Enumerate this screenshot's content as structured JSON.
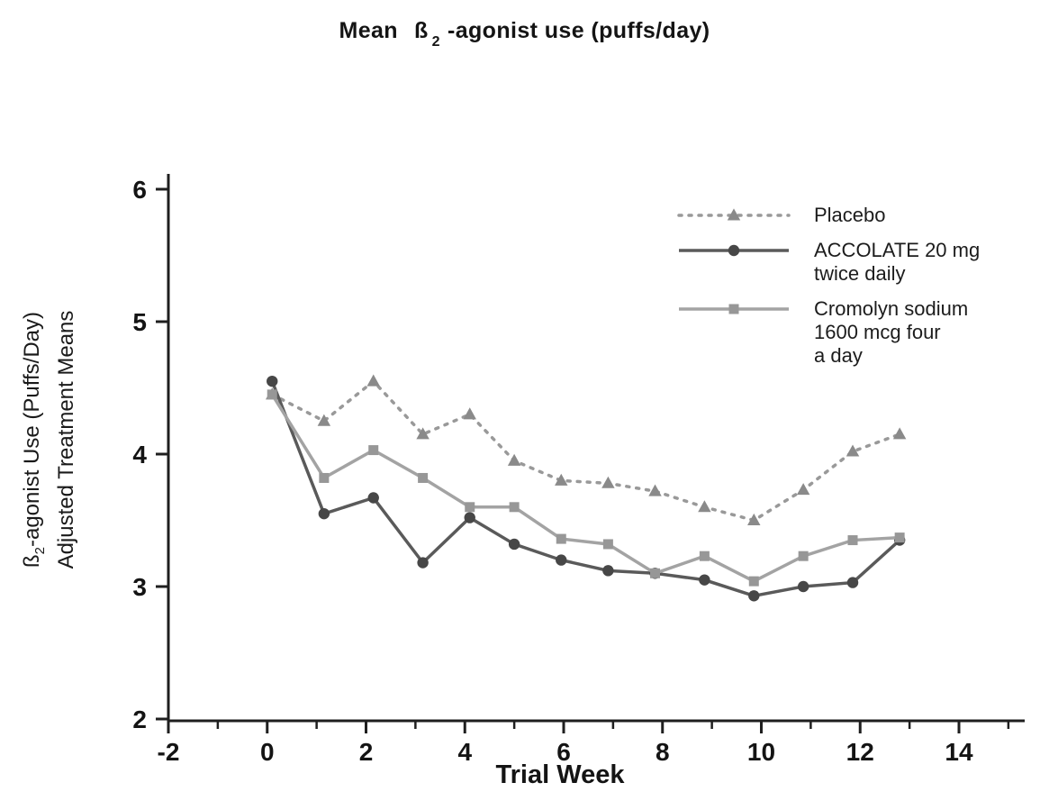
{
  "page": {
    "title": {
      "prefix": "Mean",
      "beta": "ß",
      "subscript": "2",
      "suffix": "-agonist use (puffs/day)"
    }
  },
  "chart_data": {
    "type": "line",
    "title": "Mean ß2-agonist use (puffs/day)",
    "xlabel": "Trial Week",
    "ylabel_line1": {
      "beta": "ß",
      "subscript": "2",
      "rest": "-agonist Use (Puffs/Day)"
    },
    "ylabel_line2": "Adjusted Treatment Means",
    "xlim": [
      -2,
      15.4
    ],
    "ylim": [
      2,
      6.1
    ],
    "xticks_major": [
      -2,
      0,
      2,
      4,
      6,
      8,
      10,
      12,
      14
    ],
    "xtick_labels": [
      "-2",
      "0",
      "2",
      "4",
      "6",
      "8",
      "10",
      "12",
      "14"
    ],
    "xticks_minor": [
      -1,
      1,
      3,
      5,
      7,
      9,
      11,
      13,
      15
    ],
    "yticks": [
      2,
      3,
      4,
      5,
      6
    ],
    "ytick_labels": [
      "2",
      "3",
      "4",
      "5",
      "6"
    ],
    "grid": false,
    "legend_position": "top-right",
    "axis_color": "#1f1f1f",
    "text_color": "#141414",
    "x": [
      0.1,
      1.15,
      2.15,
      3.15,
      4.1,
      5.0,
      5.95,
      6.9,
      7.85,
      8.85,
      9.85,
      10.85,
      11.85,
      12.8
    ],
    "series": [
      {
        "name": "Placebo",
        "legend_lines": [
          "Placebo"
        ],
        "marker": "triangle",
        "line": "dotted",
        "color": "#999999",
        "marker_color": "#8a8a8a",
        "values": [
          4.45,
          4.25,
          4.55,
          4.15,
          4.3,
          3.95,
          3.8,
          3.78,
          3.72,
          3.6,
          3.5,
          3.73,
          4.02,
          4.15
        ]
      },
      {
        "name": "ACCOLATE 20 mg twice daily",
        "legend_lines": [
          "ACCOLATE 20 mg",
          "twice daily"
        ],
        "marker": "circle",
        "line": "solid",
        "color": "#5a5a5a",
        "marker_color": "#474747",
        "values": [
          4.55,
          3.55,
          3.67,
          3.18,
          3.52,
          3.32,
          3.2,
          3.12,
          3.1,
          3.05,
          2.93,
          3.0,
          3.03,
          3.35
        ]
      },
      {
        "name": "Cromolyn sodium 1600 mcg four a day",
        "legend_lines": [
          "Cromolyn sodium",
          "1600 mcg four",
          "a day"
        ],
        "marker": "square",
        "line": "solid",
        "color": "#a3a3a3",
        "marker_color": "#979797",
        "values": [
          4.45,
          3.82,
          4.03,
          3.82,
          3.6,
          3.6,
          3.36,
          3.32,
          3.1,
          3.23,
          3.04,
          3.23,
          3.35,
          3.37
        ]
      }
    ]
  }
}
